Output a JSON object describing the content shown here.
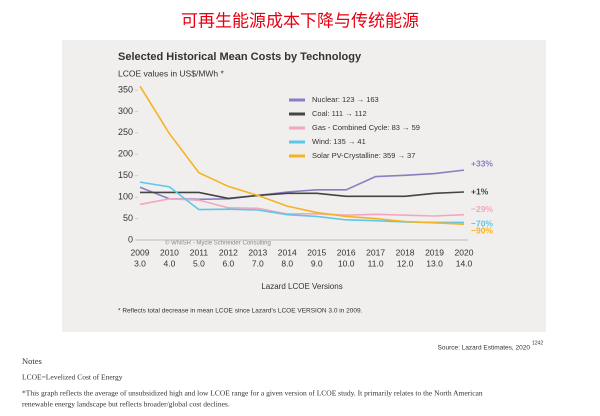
{
  "page_title": "可再生能源成本下降与传统能源",
  "chart_data": {
    "type": "line",
    "title": "Selected Historical Mean Costs by Technology",
    "subtitle": "LCOE values in US$/MWh *",
    "x_label": "Lazard LCOE Versions",
    "categories": [
      "2009",
      "2010",
      "2011",
      "2012",
      "2013",
      "2014",
      "2015",
      "2016",
      "2017",
      "2018",
      "2019",
      "2020"
    ],
    "versions": [
      "3.0",
      "4.0",
      "5.0",
      "6.0",
      "7.0",
      "8.0",
      "9.0",
      "10.0",
      "11.0",
      "12.0",
      "13.0",
      "14.0"
    ],
    "ylim": [
      0,
      350
    ],
    "yticks": [
      0,
      50,
      100,
      150,
      200,
      250,
      300,
      350
    ],
    "grid": false,
    "series": [
      {
        "name": "Nuclear: 123 → 163",
        "color": "#8e7cc3",
        "end_label": "+33%",
        "values": [
          123,
          96,
          95,
          96,
          104,
          112,
          117,
          117,
          148,
          151,
          155,
          163
        ]
      },
      {
        "name": "Coal: 111 → 112",
        "color": "#444444",
        "end_label": "+1%",
        "values": [
          111,
          111,
          111,
          97,
          104,
          109,
          109,
          102,
          102,
          102,
          109,
          112
        ]
      },
      {
        "name": "Gas - Combined Cycle: 83 → 59",
        "color": "#f4a6c0",
        "end_label": "−29%",
        "values": [
          83,
          96,
          93,
          75,
          74,
          61,
          61,
          58,
          60,
          58,
          56,
          59
        ]
      },
      {
        "name": "Wind: 135 → 41",
        "color": "#5bc8e8",
        "end_label": "−70%",
        "values": [
          135,
          124,
          71,
          72,
          70,
          59,
          55,
          47,
          45,
          42,
          41,
          41
        ]
      },
      {
        "name": "Solar PV-Crystalline: 359 → 37",
        "color": "#f5b324",
        "end_label": "−90%",
        "values": [
          359,
          248,
          157,
          125,
          104,
          79,
          64,
          55,
          50,
          43,
          40,
          37
        ]
      }
    ],
    "watermark": "© WNISR - Mycle Schneider Consulting",
    "footnote": "* Reflects total decrease in mean LCOE since Lazard's LCOE VERSION 3.0 in 2009."
  },
  "source": "Source: Lazard Estimates, 2020",
  "source_ref": "1242",
  "notes": {
    "heading": "Notes",
    "lines": [
      "LCOE=Levelized Cost of Energy",
      "*This graph reflects the average of unsubsidized high and low LCOE range for a given version of LCOE study. It primarily relates to the North American",
      "renewable energy landscape but reflects broader/global cost declines."
    ]
  }
}
